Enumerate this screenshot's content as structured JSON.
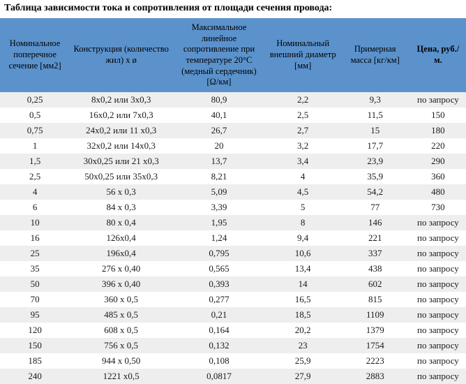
{
  "title": "Таблица зависимости тока и сопротивления от площади сечения провода:",
  "colors": {
    "header_bg": "#5b92cc",
    "row_odd_bg": "#eeeeee",
    "row_even_bg": "#ffffff",
    "text": "#000000"
  },
  "columns": [
    "Номинальное поперечное сечение\n[мм2]",
    "Конструкция\n(количество жил) x ø",
    "Максимальное линейное сопротивление при температуре 20°C (медный сердечник)\n[Ω/км]",
    "Номинальный внешний диаметр\n[мм]",
    "Примерная масса\n[кг/км]",
    "Цена, руб./м."
  ],
  "rows": [
    [
      "0,25",
      "8x0,2 или 3x0,3",
      "80,9",
      "2,2",
      "9,3",
      "по запросу"
    ],
    [
      "0,5",
      "16x0,2 или 7x0,3",
      "40,1",
      "2,5",
      "11,5",
      "150"
    ],
    [
      "0,75",
      "24x0,2 или 11 x0,3",
      "26,7",
      "2,7",
      "15",
      "180"
    ],
    [
      "1",
      "32x0,2 или 14x0,3",
      "20",
      "3,2",
      "17,7",
      "220"
    ],
    [
      "1,5",
      "30x0,25 или 21 x0,3",
      "13,7",
      "3,4",
      "23,9",
      "290"
    ],
    [
      "2,5",
      "50x0,25 или 35x0,3",
      "8,21",
      "4",
      "35,9",
      "360"
    ],
    [
      "4",
      "56 x 0,3",
      "5,09",
      "4,5",
      "54,2",
      "480"
    ],
    [
      "6",
      "84 x 0,3",
      "3,39",
      "5",
      "77",
      "730"
    ],
    [
      "10",
      "80 x 0,4",
      "1,95",
      "8",
      "146",
      "по запросу"
    ],
    [
      "16",
      "126x0,4",
      "1,24",
      "9,4",
      "221",
      "по запросу"
    ],
    [
      "25",
      "196x0,4",
      "0,795",
      "10,6",
      "337",
      "по запросу"
    ],
    [
      "35",
      "276 x 0,40",
      "0,565",
      "13,4",
      "438",
      "по запросу"
    ],
    [
      "50",
      "396 x 0,40",
      "0,393",
      "14",
      "602",
      "по запросу"
    ],
    [
      "70",
      "360 x 0,5",
      "0,277",
      "16,5",
      "815",
      "по запросу"
    ],
    [
      "95",
      "485 x 0,5",
      "0,21",
      "18,5",
      "1109",
      "по запросу"
    ],
    [
      "120",
      "608 x 0,5",
      "0,164",
      "20,2",
      "1379",
      "по запросу"
    ],
    [
      "150",
      "756 x 0,5",
      "0,132",
      "23",
      "1754",
      "по запросу"
    ],
    [
      "185",
      "944 x 0,50",
      "0,108",
      "25,9",
      "2223",
      "по запросу"
    ],
    [
      "240",
      "1221 x0,5",
      "0,0817",
      "27,9",
      "2883",
      "по запросу"
    ]
  ]
}
